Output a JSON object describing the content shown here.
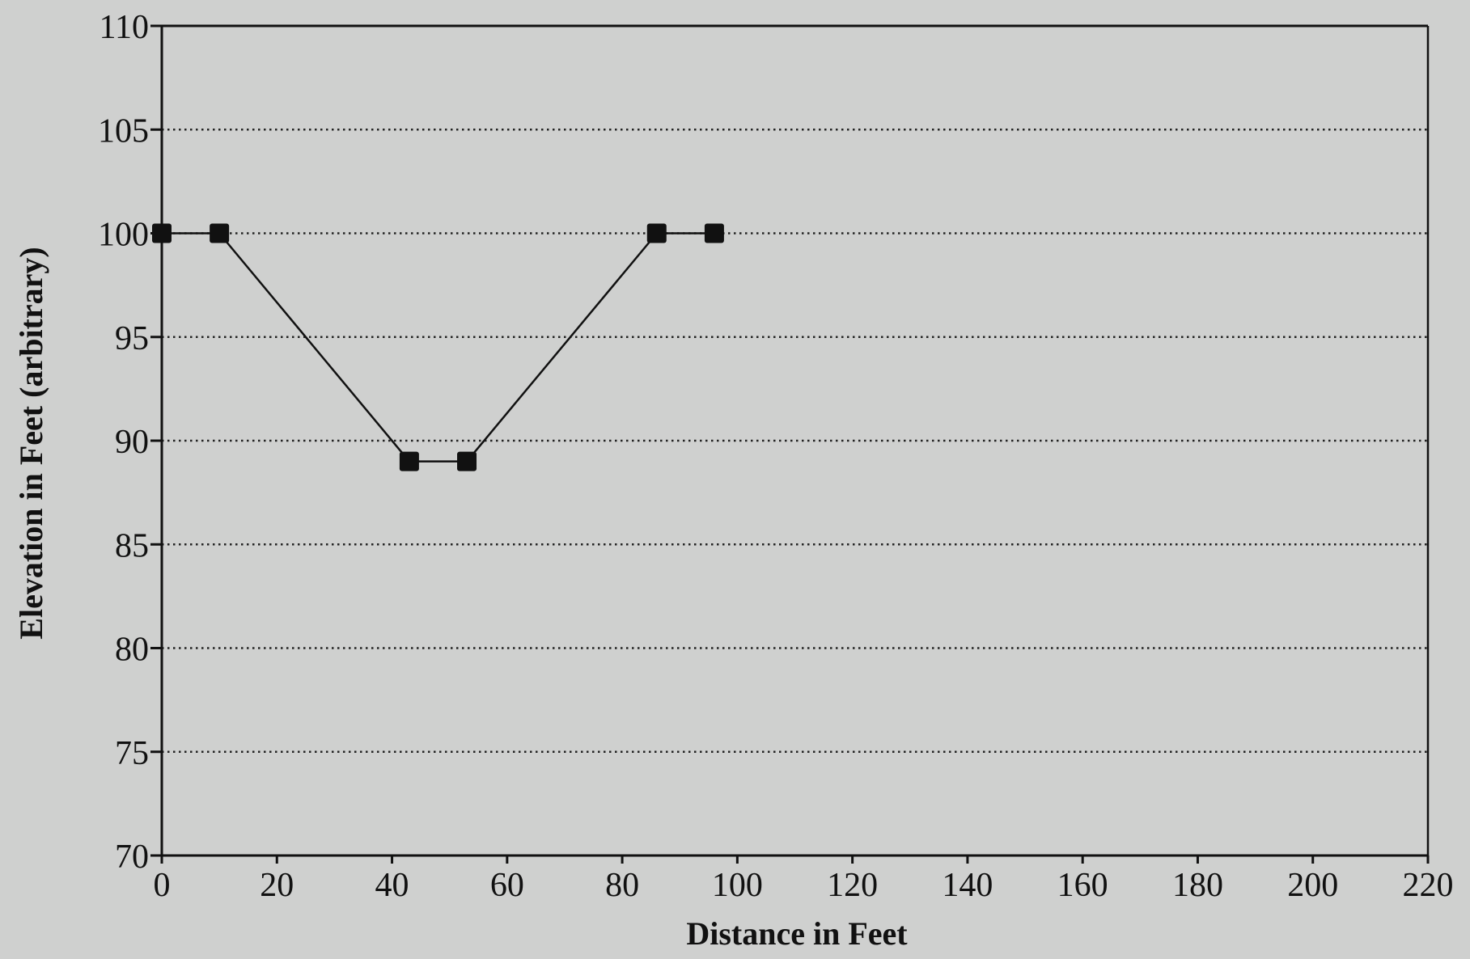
{
  "chart_data": {
    "type": "line",
    "title": "",
    "xlabel": "Distance in Feet",
    "ylabel": "Elevation in Feet (arbitrary)",
    "xlim": [
      0,
      220
    ],
    "ylim": [
      70,
      110
    ],
    "xticks": [
      0,
      20,
      40,
      60,
      80,
      100,
      120,
      140,
      160,
      180,
      200,
      220
    ],
    "yticks": [
      70,
      75,
      80,
      85,
      90,
      95,
      100,
      105,
      110
    ],
    "grid": "horizontal dotted",
    "legend": "none",
    "series": [
      {
        "x": [
          0,
          10,
          43,
          53,
          86,
          96
        ],
        "y": [
          100,
          100,
          89,
          89,
          100,
          100
        ]
      }
    ],
    "colors": {
      "background": "#cfd0cf",
      "line": "#111111",
      "grid": "#222222"
    }
  }
}
